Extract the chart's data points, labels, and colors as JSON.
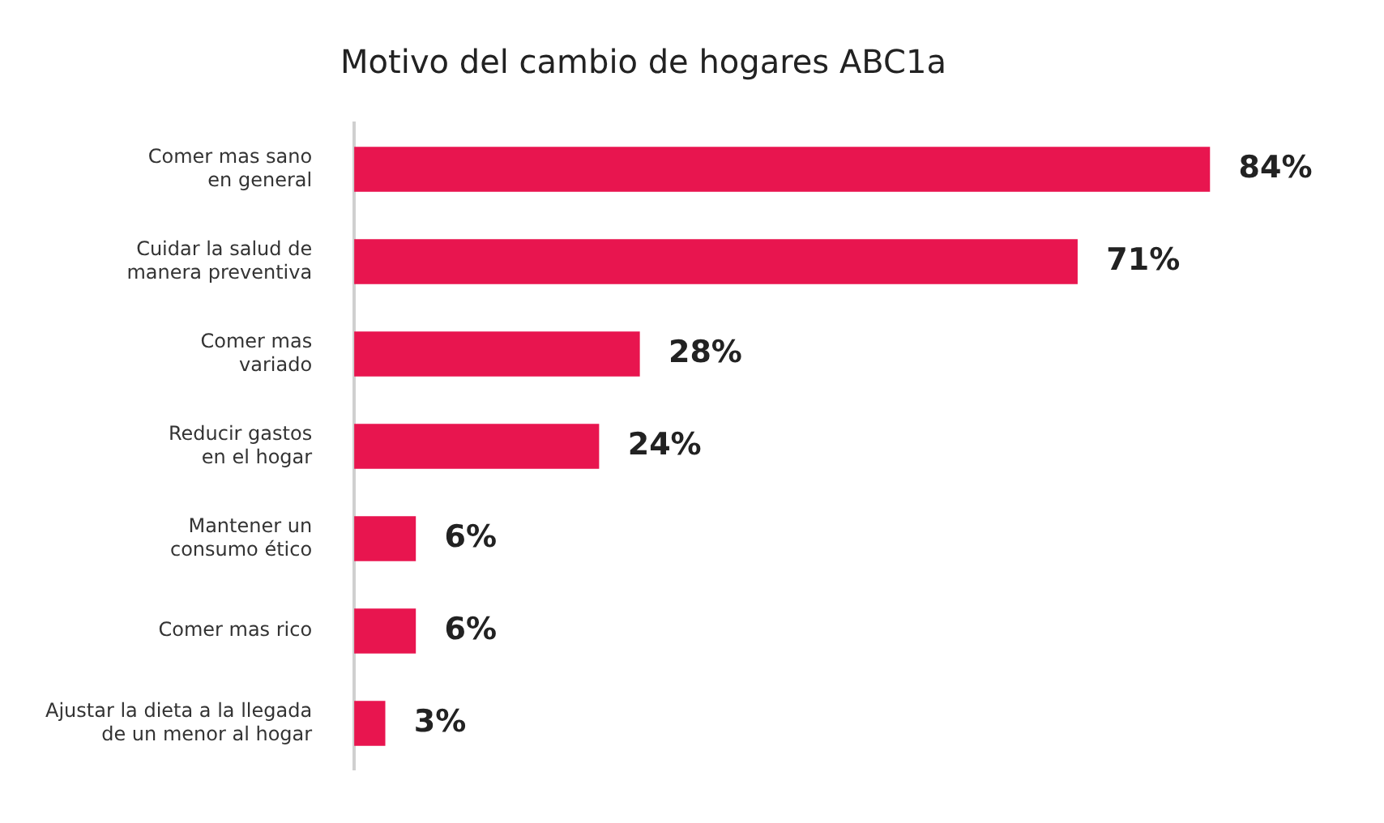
{
  "chart_data": {
    "type": "bar",
    "orientation": "horizontal",
    "title": "Motivo del cambio de hogares ABC1a",
    "categories": [
      "Comer mas sano\nen general",
      "Cuidar la salud de\nmanera preventiva",
      "Comer mas\nvariado",
      "Reducir gastos\nen el hogar",
      "Mantener un\nconsumo ético",
      "Comer mas rico",
      "Ajustar la dieta a la llegada\nde un menor al hogar"
    ],
    "values": [
      84,
      71,
      28,
      24,
      6,
      6,
      3
    ],
    "value_labels": [
      "84%",
      "71%",
      "28%",
      "24%",
      "6%",
      "6%",
      "3%"
    ],
    "color": "#e8154f",
    "grid": false,
    "legend": false
  }
}
